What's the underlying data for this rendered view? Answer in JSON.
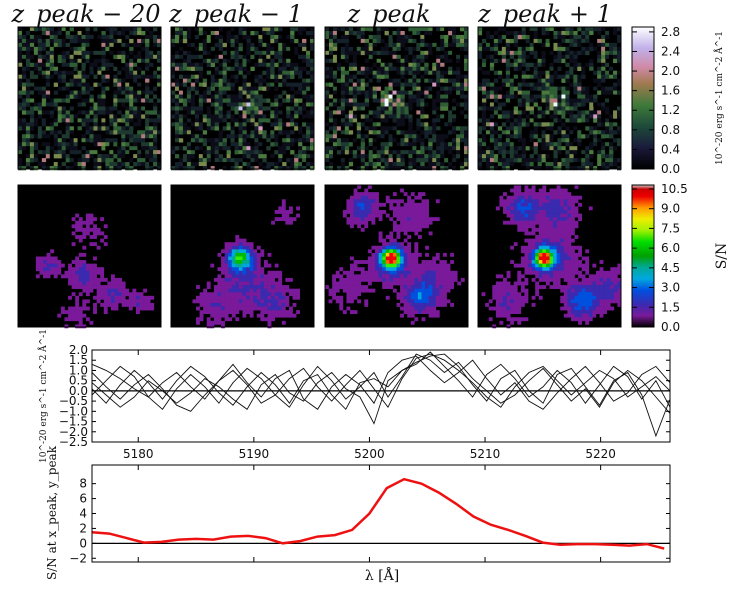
{
  "chart_data": [
    {
      "type": "heatmap",
      "panel": "flux-maps",
      "titles": [
        "z_peak − 20",
        "z_peak − 1",
        "z_peak",
        "z_peak + 1"
      ],
      "colorbar": {
        "label": "10^-20 erg s^-1 cm^-2 Å^-1",
        "range": [
          0.0,
          2.9
        ],
        "ticks": [
          "0.0",
          "0.4",
          "0.8",
          "1.2",
          "1.6",
          "2.0",
          "2.4",
          "2.8"
        ],
        "colormap": "cubehelix"
      }
    },
    {
      "type": "heatmap",
      "panel": "sn-maps",
      "colorbar": {
        "label": "S/N",
        "range": [
          0.0,
          10.8
        ],
        "ticks": [
          "0.0",
          "1.5",
          "3.0",
          "4.5",
          "6.0",
          "7.5",
          "9.0",
          "10.5"
        ],
        "colormap": "nipy_spectral"
      }
    },
    {
      "type": "line",
      "panel": "spectra",
      "ylabel": "10^-20 erg s^-1 cm^-2 Å^-1",
      "xlim": [
        5176,
        5226
      ],
      "ylim": [
        -2.5,
        2.0
      ],
      "yticks": [
        "2.0",
        "1.5",
        "1.0",
        "0.5",
        "0.0",
        "−0.5",
        "−1.0",
        "−1.5",
        "−2.0",
        "−2.5"
      ],
      "xticks": [
        "5180",
        "5190",
        "5200",
        "5210",
        "5220"
      ],
      "series": [
        {
          "values": [
            1.3,
            1.0,
            0.6,
            0.1,
            -0.3,
            0.4,
            0.9,
            0.2,
            -0.4,
            0.5,
            1.0,
            0.3,
            -0.6,
            -0.2,
            0.6,
            1.1,
            0.2,
            -0.5,
            0.3,
            1.0,
            0.1,
            -0.8,
            0.6,
            1.6,
            1.8,
            1.5,
            1.0,
            0.4,
            -0.3,
            -0.8,
            0.2,
            0.9,
            1.2,
            0.5,
            -0.2,
            0.4,
            1.0,
            0.6,
            -0.3,
            0.2,
            0.7,
            0.0
          ]
        },
        {
          "values": [
            0.4,
            -0.2,
            -0.8,
            -0.3,
            0.5,
            0.0,
            -0.6,
            -0.1,
            0.6,
            0.2,
            -0.4,
            -0.9,
            0.3,
            0.8,
            -0.1,
            -0.5,
            0.4,
            0.9,
            0.1,
            -0.3,
            -1.6,
            0.5,
            1.0,
            1.4,
            1.7,
            1.8,
            1.2,
            0.3,
            -0.5,
            0.6,
            1.0,
            0.0,
            -0.6,
            0.8,
            1.1,
            0.2,
            -0.7,
            0.5,
            0.9,
            -0.2,
            -2.2,
            -0.4
          ]
        },
        {
          "values": [
            -0.2,
            0.5,
            1.2,
            0.7,
            -0.3,
            -0.9,
            0.1,
            0.8,
            0.2,
            -0.6,
            0.4,
            1.1,
            0.6,
            -0.2,
            -0.8,
            0.3,
            1.2,
            0.5,
            -0.4,
            0.2,
            0.9,
            -0.3,
            0.7,
            1.8,
            1.5,
            0.9,
            1.4,
            0.6,
            0.0,
            -0.6,
            -0.2,
            0.5,
            1.1,
            0.3,
            -0.5,
            0.1,
            -0.8,
            0.4,
            1.0,
            0.5,
            -0.3,
            -1.1
          ]
        },
        {
          "values": [
            0.9,
            0.2,
            -0.4,
            0.3,
            0.8,
            0.1,
            -0.7,
            -1.0,
            -0.2,
            0.5,
            1.3,
            0.4,
            -0.3,
            0.6,
            1.0,
            -0.4,
            -0.9,
            0.2,
            0.8,
            0.3,
            -0.6,
            0.9,
            1.5,
            1.7,
            1.0,
            0.4,
            0.9,
            1.5,
            0.6,
            -0.2,
            0.4,
            -0.5,
            -0.9,
            -0.1,
            0.6,
            1.2,
            0.4,
            -0.5,
            -0.1,
            0.8,
            1.2,
            0.4
          ]
        },
        {
          "values": [
            0.1,
            -0.6,
            0.3,
            1.0,
            0.4,
            -0.4,
            0.5,
            1.2,
            0.7,
            -0.1,
            -0.7,
            0.2,
            0.9,
            0.3,
            -0.6,
            0.5,
            0.8,
            -0.2,
            -0.9,
            0.4,
            0.6,
            0.2,
            1.0,
            1.3,
            1.9,
            1.2,
            0.5,
            -0.3,
            0.8,
            1.3,
            0.6,
            -0.3,
            0.2,
            1.0,
            0.4,
            -0.6,
            0.3,
            1.2,
            0.7,
            -0.4,
            0.5,
            -0.8
          ]
        }
      ]
    },
    {
      "type": "line",
      "panel": "sn-spectrum",
      "ylabel": "S/N at x_peak, y_peak",
      "xlabel": "λ [Å]",
      "xlim": [
        5176,
        5226
      ],
      "ylim": [
        -2.5,
        10.5
      ],
      "yticks": [
        "−2",
        "0",
        "2",
        "4",
        "6",
        "8"
      ],
      "xticks": [
        "5180",
        "5190",
        "5200",
        "5210",
        "5220"
      ],
      "color": "#ee1111",
      "x": [
        5176,
        5177.5,
        5179,
        5180.5,
        5182,
        5183.5,
        5185,
        5186.5,
        5188,
        5189.5,
        5191,
        5192.5,
        5194,
        5195.5,
        5197,
        5198.5,
        5200,
        5201.5,
        5203,
        5204.5,
        5206,
        5207.5,
        5209,
        5210.5,
        5212,
        5213.5,
        5215,
        5216.5,
        5218,
        5219.5,
        5221,
        5222.5,
        5224,
        5225.5
      ],
      "values": [
        1.5,
        1.3,
        0.7,
        0.1,
        0.2,
        0.5,
        0.6,
        0.5,
        0.9,
        1.0,
        0.7,
        0.0,
        0.3,
        0.9,
        1.1,
        1.8,
        4.0,
        7.4,
        8.6,
        8.0,
        6.8,
        5.3,
        3.6,
        2.5,
        1.8,
        1.0,
        0.1,
        -0.2,
        -0.1,
        -0.1,
        -0.2,
        -0.3,
        -0.1,
        -0.7
      ]
    }
  ]
}
